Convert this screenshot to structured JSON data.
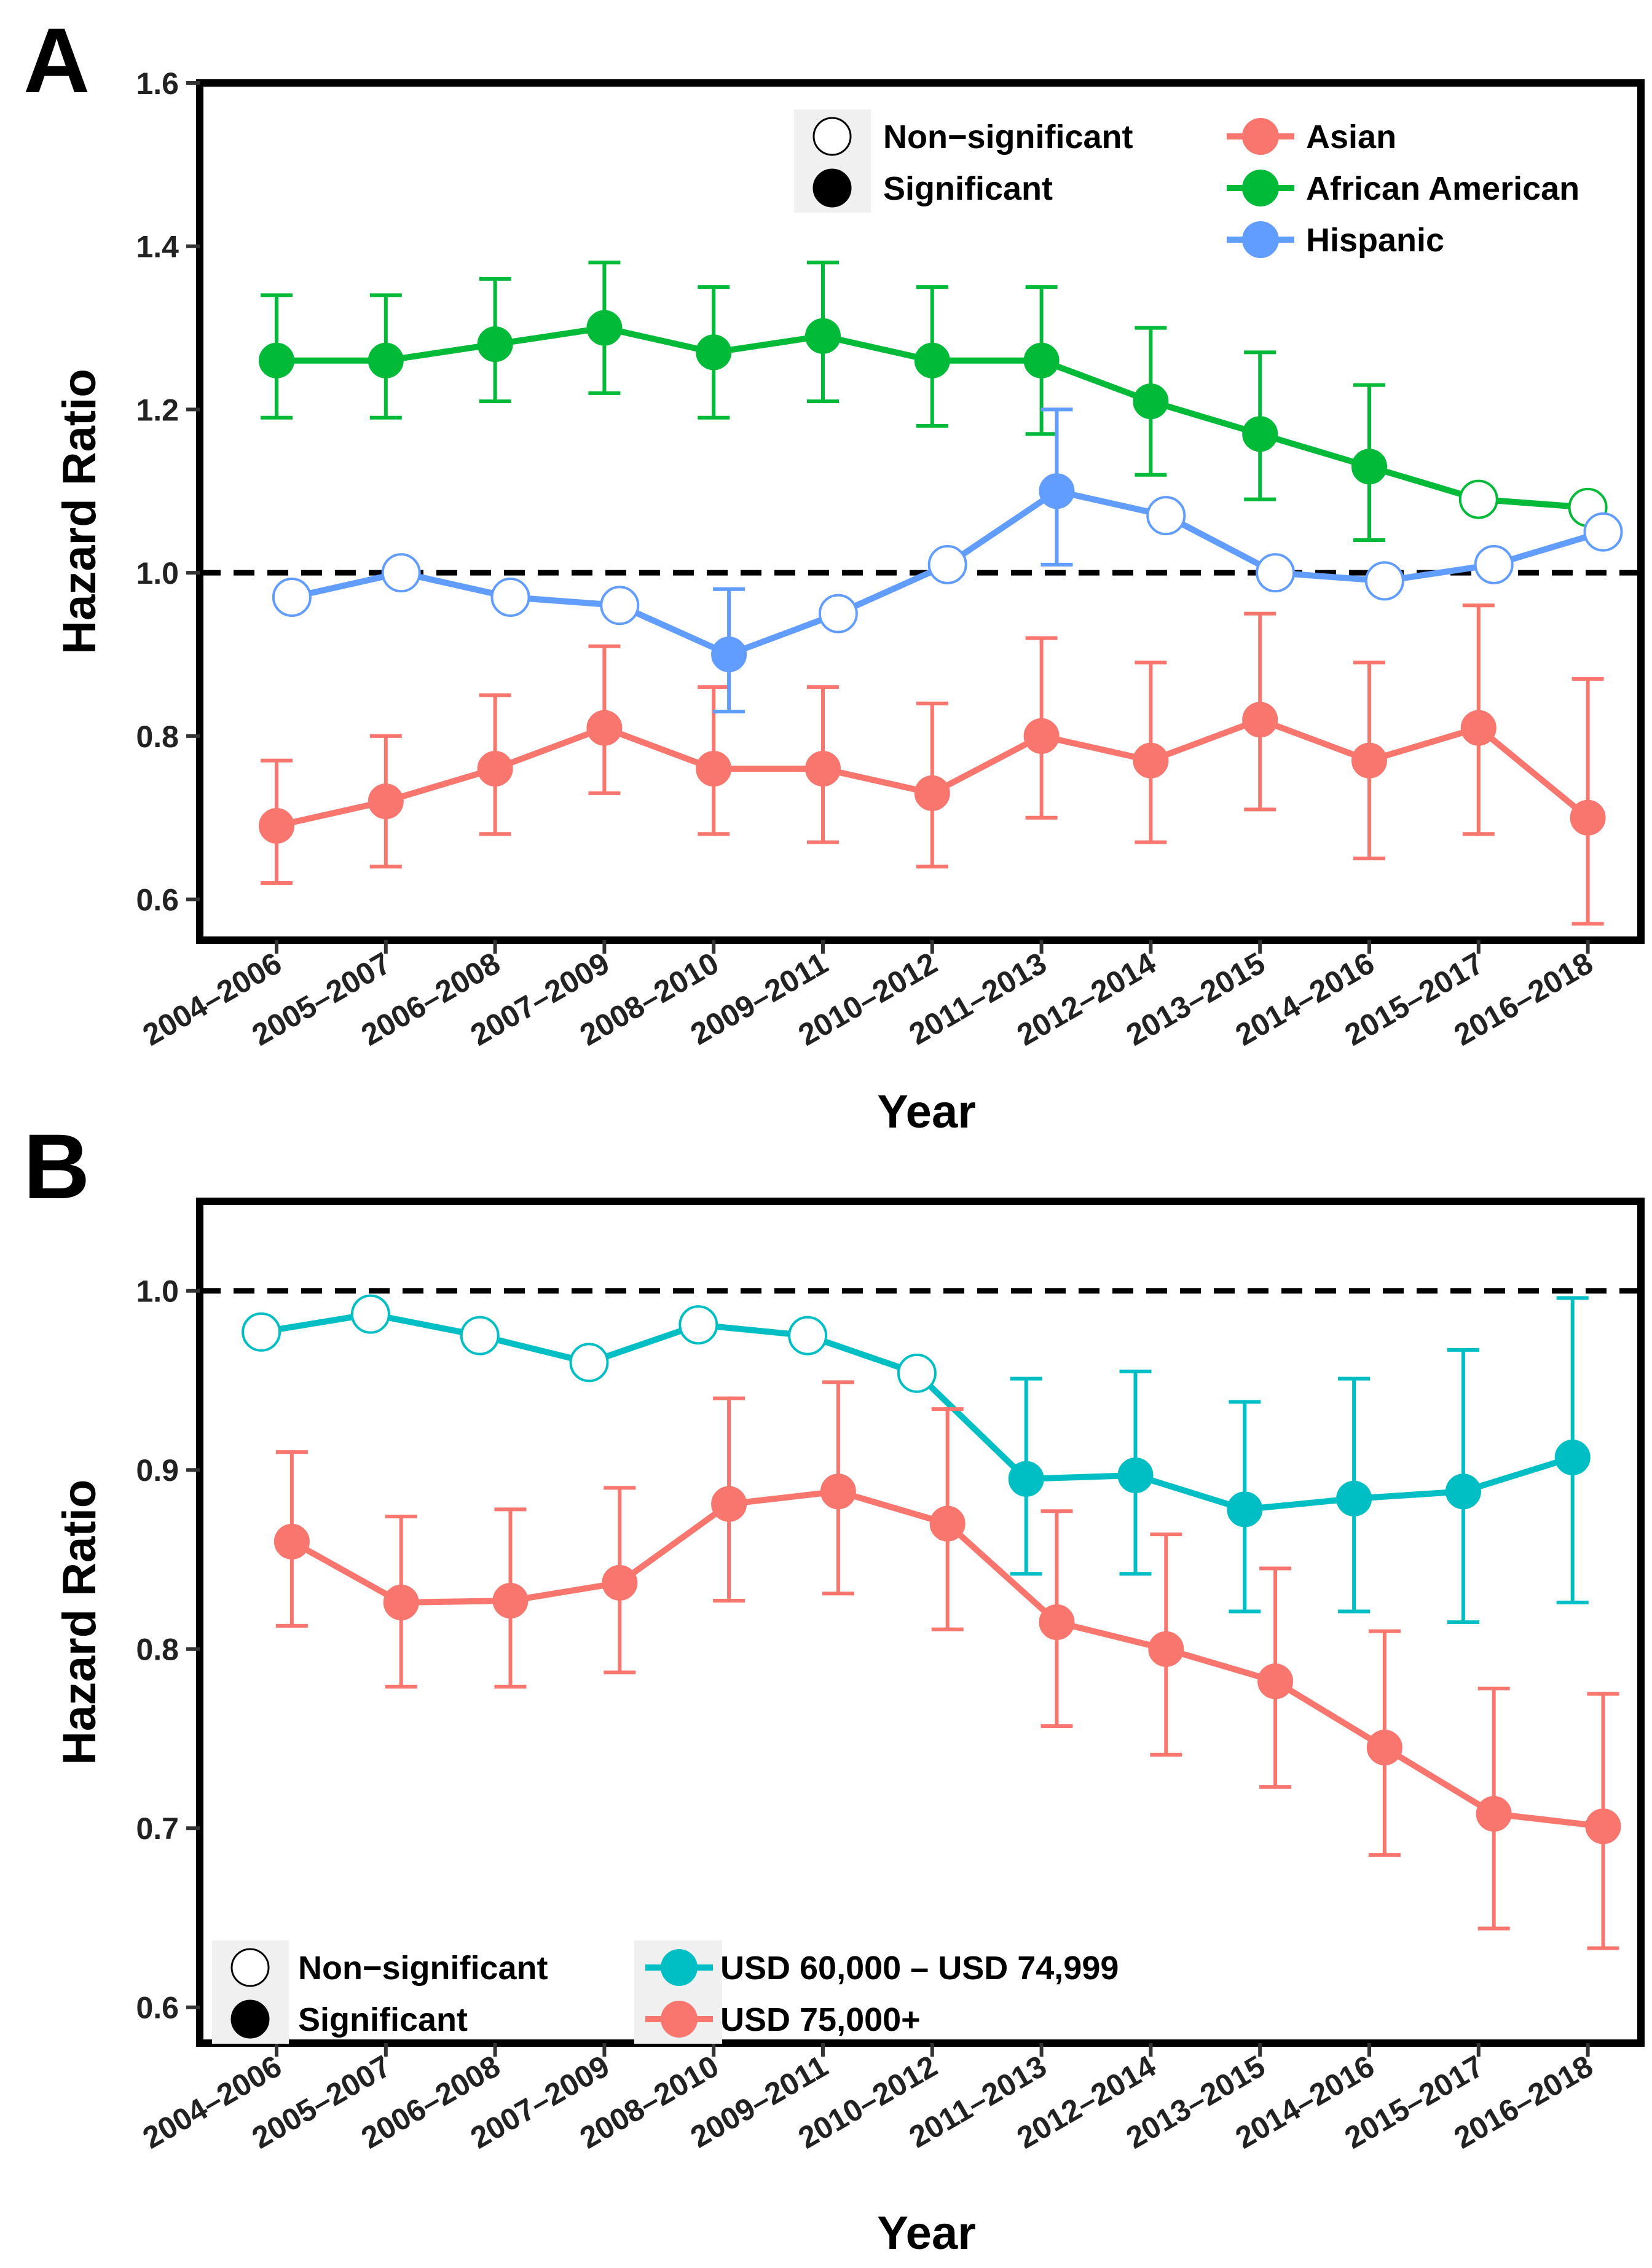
{
  "chart_data": [
    {
      "panel": "A",
      "type": "line",
      "xlabel": "Year",
      "ylabel": "Hazard Ratio",
      "ylim": [
        0.55,
        1.6
      ],
      "yticks": [
        0.6,
        0.8,
        1.0,
        1.2,
        1.4,
        1.6
      ],
      "ytick_labels": [
        "0.6",
        "0.8",
        "1.0",
        "1.2",
        "1.4",
        "1.6"
      ],
      "reference_line": 1.0,
      "categories": [
        "2004–2006",
        "2005–2007",
        "2006–2008",
        "2007–2009",
        "2008–2010",
        "2009–2011",
        "2010–2012",
        "2011–2013",
        "2012–2014",
        "2013–2015",
        "2014–2016",
        "2015–2017",
        "2016–2018"
      ],
      "marker_legend": [
        {
          "label": "Non−significant",
          "filled": false
        },
        {
          "label": "Significant",
          "filled": true
        }
      ],
      "series": [
        {
          "name": "Asian",
          "color": "#F8766D",
          "values": [
            0.69,
            0.72,
            0.76,
            0.81,
            0.76,
            0.76,
            0.73,
            0.8,
            0.77,
            0.82,
            0.77,
            0.81,
            0.7
          ],
          "lower": [
            0.62,
            0.64,
            0.68,
            0.73,
            0.68,
            0.67,
            0.64,
            0.7,
            0.67,
            0.71,
            0.65,
            0.68,
            0.57
          ],
          "upper": [
            0.77,
            0.8,
            0.85,
            0.91,
            0.86,
            0.86,
            0.84,
            0.92,
            0.89,
            0.95,
            0.89,
            0.96,
            0.87
          ],
          "significant": [
            true,
            true,
            true,
            true,
            true,
            true,
            true,
            true,
            true,
            true,
            true,
            true,
            true
          ],
          "dx": 0
        },
        {
          "name": "African American",
          "color": "#00BA38",
          "values": [
            1.26,
            1.26,
            1.28,
            1.3,
            1.27,
            1.29,
            1.26,
            1.26,
            1.21,
            1.17,
            1.13,
            1.09,
            1.08
          ],
          "lower": [
            1.19,
            1.19,
            1.21,
            1.22,
            1.19,
            1.21,
            1.18,
            1.17,
            1.12,
            1.09,
            1.04,
            null,
            null
          ],
          "upper": [
            1.34,
            1.34,
            1.36,
            1.38,
            1.35,
            1.38,
            1.35,
            1.35,
            1.3,
            1.27,
            1.23,
            null,
            null
          ],
          "significant": [
            true,
            true,
            true,
            true,
            true,
            true,
            true,
            true,
            true,
            true,
            true,
            false,
            false
          ],
          "dx": 0
        },
        {
          "name": "Hispanic",
          "color": "#619CFF",
          "values": [
            0.97,
            1.0,
            0.97,
            0.96,
            0.9,
            0.95,
            1.01,
            1.1,
            1.07,
            1.0,
            0.99,
            1.01,
            1.05
          ],
          "lower": [
            null,
            null,
            null,
            null,
            0.83,
            null,
            null,
            1.01,
            null,
            null,
            null,
            null,
            null
          ],
          "upper": [
            null,
            null,
            null,
            null,
            0.98,
            null,
            null,
            1.2,
            null,
            null,
            null,
            null,
            null
          ],
          "significant": [
            false,
            false,
            false,
            false,
            true,
            false,
            false,
            true,
            false,
            false,
            false,
            false,
            false
          ],
          "dx": 0.14
        }
      ]
    },
    {
      "panel": "B",
      "type": "line",
      "xlabel": "Year",
      "ylabel": "Hazard Ratio",
      "ylim": [
        0.58,
        1.05
      ],
      "yticks": [
        0.6,
        0.7,
        0.8,
        0.9,
        1.0
      ],
      "ytick_labels": [
        "0.6",
        "0.7",
        "0.8",
        "0.9",
        "1.0"
      ],
      "reference_line": 1.0,
      "categories": [
        "2004–2006",
        "2005–2007",
        "2006–2008",
        "2007–2009",
        "2008–2010",
        "2009–2011",
        "2010–2012",
        "2011–2013",
        "2012–2014",
        "2013–2015",
        "2014–2016",
        "2015–2017",
        "2016–2018"
      ],
      "marker_legend": [
        {
          "label": "Non−significant",
          "filled": false
        },
        {
          "label": "Significant",
          "filled": true
        }
      ],
      "series": [
        {
          "name": "USD 60,000 – USD 74,999",
          "color": "#00BFC4",
          "values": [
            0.977,
            0.987,
            0.975,
            0.96,
            0.981,
            0.975,
            0.954,
            0.895,
            0.897,
            0.878,
            0.884,
            0.888,
            0.907
          ],
          "lower": [
            null,
            null,
            null,
            null,
            null,
            null,
            null,
            0.842,
            0.842,
            0.821,
            0.821,
            0.815,
            0.826
          ],
          "upper": [
            null,
            null,
            null,
            null,
            null,
            null,
            null,
            0.951,
            0.955,
            0.938,
            0.951,
            0.967,
            0.996
          ],
          "significant": [
            false,
            false,
            false,
            false,
            false,
            false,
            false,
            true,
            true,
            true,
            true,
            true,
            true
          ],
          "dx": -0.14
        },
        {
          "name": "USD 75,000+",
          "color": "#F8766D",
          "values": [
            0.86,
            0.826,
            0.827,
            0.837,
            0.881,
            0.888,
            0.87,
            0.815,
            0.8,
            0.782,
            0.745,
            0.708,
            0.701
          ],
          "lower": [
            0.813,
            0.779,
            0.779,
            0.787,
            0.827,
            0.831,
            0.811,
            0.757,
            0.741,
            0.723,
            0.685,
            0.644,
            0.633
          ],
          "upper": [
            0.91,
            0.874,
            0.878,
            0.89,
            0.94,
            0.949,
            0.934,
            0.877,
            0.864,
            0.845,
            0.81,
            0.778,
            0.775
          ],
          "significant": [
            true,
            true,
            true,
            true,
            true,
            true,
            true,
            true,
            true,
            true,
            true,
            true,
            true
          ],
          "dx": 0.14
        }
      ]
    }
  ]
}
